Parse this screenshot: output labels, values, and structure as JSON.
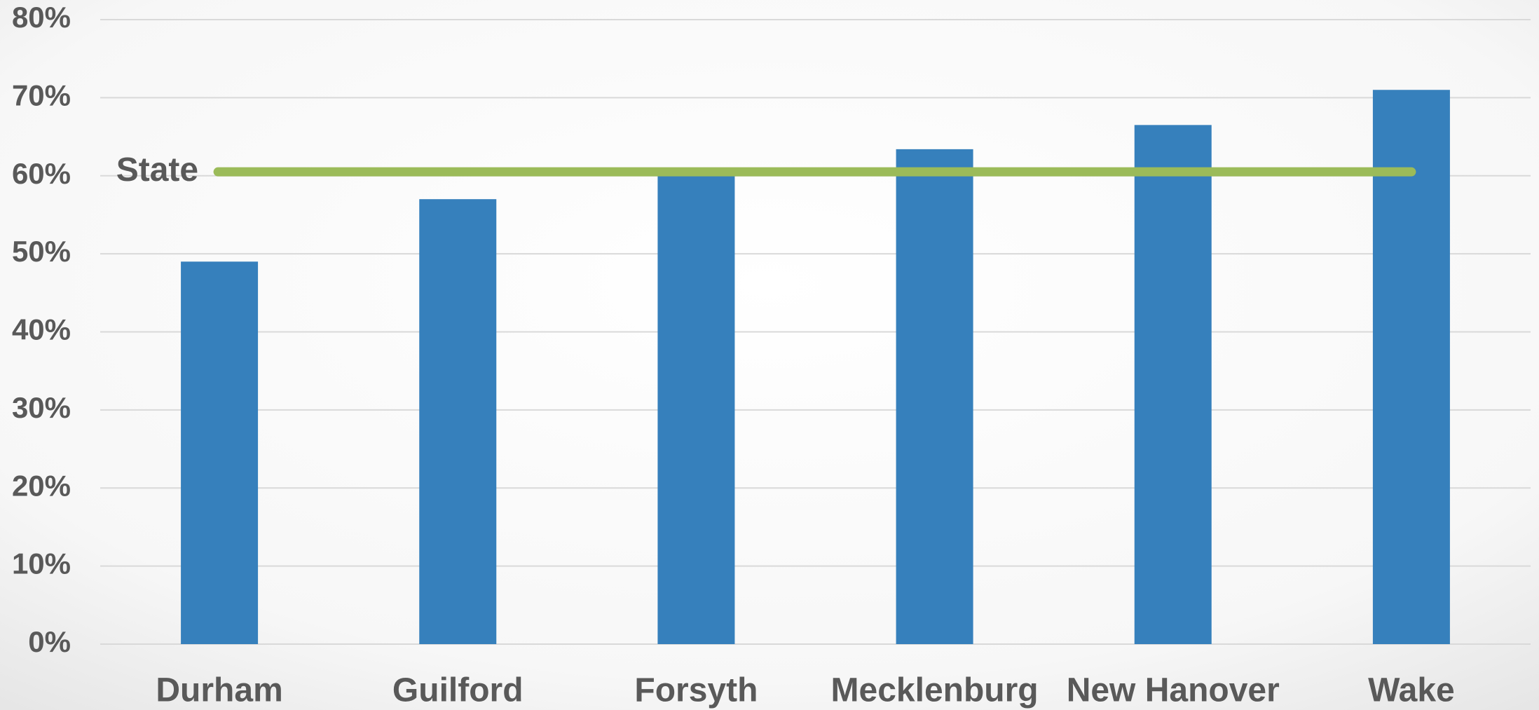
{
  "chart_data": {
    "type": "bar",
    "categories": [
      "Durham",
      "Guilford",
      "Forsyth",
      "Mecklenburg",
      "New Hanover",
      "Wake"
    ],
    "values": [
      49,
      57,
      60,
      63.4,
      66.5,
      71
    ],
    "color": "#3680bc",
    "ylim": [
      0,
      80
    ],
    "yticks": [
      {
        "value": 0,
        "label": "0%"
      },
      {
        "value": 10,
        "label": "10%"
      },
      {
        "value": 20,
        "label": "20%"
      },
      {
        "value": 30,
        "label": "30%"
      },
      {
        "value": 40,
        "label": "40%"
      },
      {
        "value": 50,
        "label": "50%"
      },
      {
        "value": 60,
        "label": "60%"
      },
      {
        "value": 70,
        "label": "70%"
      },
      {
        "value": 80,
        "label": "80%"
      }
    ],
    "grid": true,
    "reference_line": {
      "label": "State",
      "value": 60.5,
      "color": "#9bbb59"
    }
  }
}
